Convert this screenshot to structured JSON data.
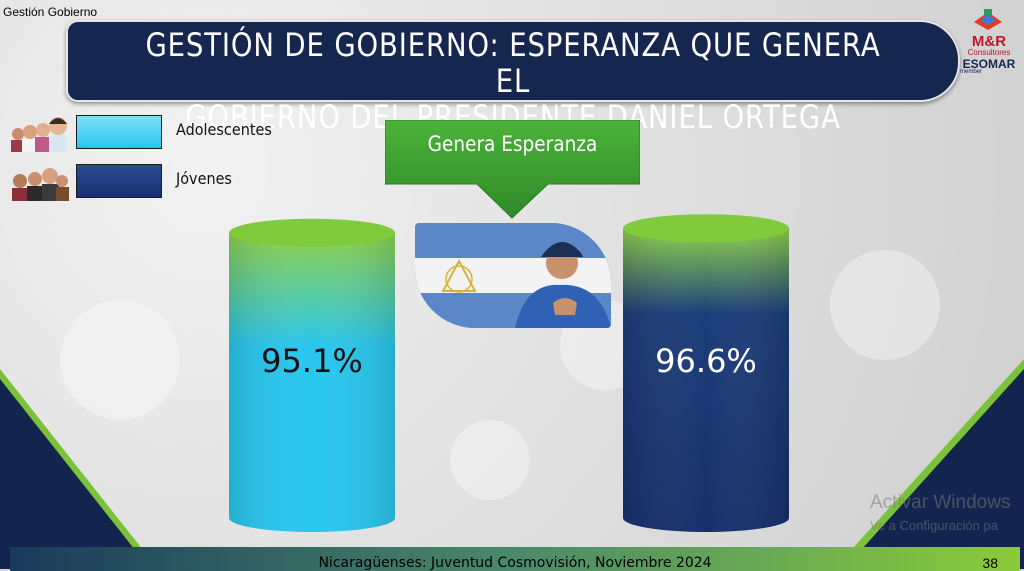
{
  "section_label": "Gestión Gobierno",
  "title": {
    "line1": "GESTIÓN DE GOBIERNO: ESPERANZA QUE GENERA EL",
    "line2": "GOBIERNO DEL PRESIDENTE DANIEL ORTEGA"
  },
  "logo": {
    "brand": "M&R",
    "sub": "Consultores",
    "esomar": "ESOMAR",
    "member": "member"
  },
  "banner": {
    "label": "Genera Esperanza"
  },
  "colors": {
    "adolescentes": "#29c6ee",
    "jovenes": "#16306b",
    "top_green": "#8ccf3f",
    "title_bg": "#15264f"
  },
  "chart_data": {
    "type": "bar",
    "categories": [
      "Adolescentes",
      "Jóvenes"
    ],
    "values": [
      95.1,
      96.6
    ],
    "value_labels": [
      "95.1%",
      "96.6%"
    ],
    "legend": [
      "Adolescentes",
      "Jóvenes"
    ],
    "legend_placement": "top-left",
    "title": "Genera Esperanza"
  },
  "footer": {
    "text": "Nicaragüenses: Juventud Cosmovisión, Noviembre 2024",
    "page": "38"
  },
  "watermark": {
    "line1": "Activar Windows",
    "line2": "Ve a Configuración pa"
  }
}
